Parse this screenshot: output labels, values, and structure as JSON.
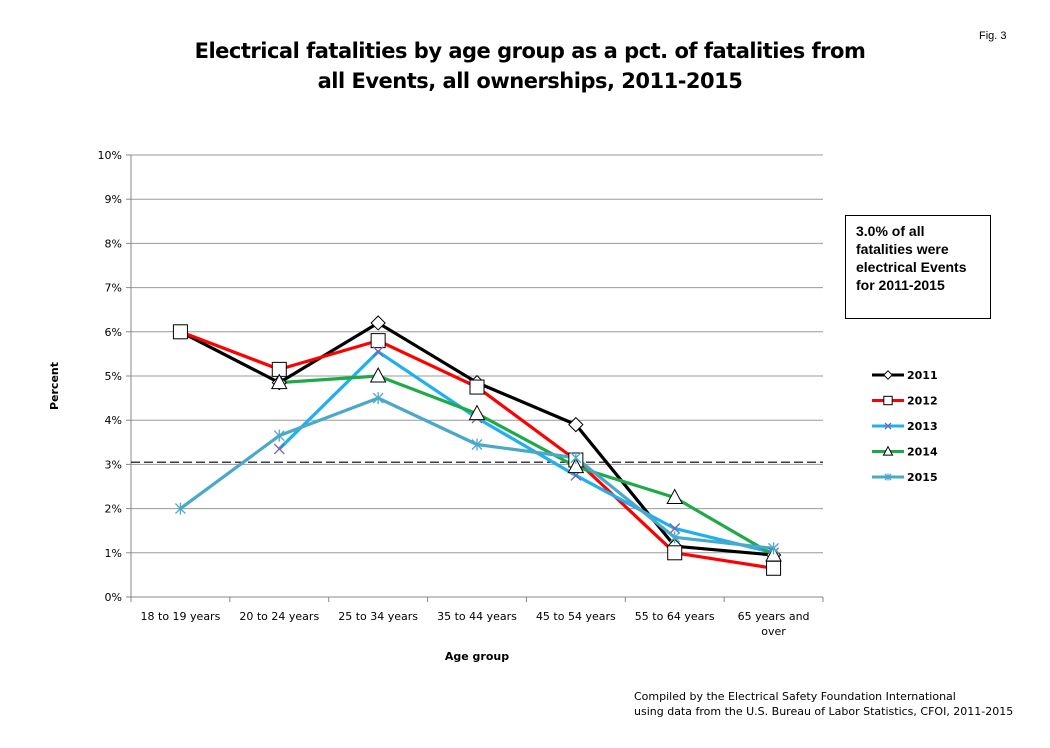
{
  "figure_label": "Fig. 3",
  "note": "3.0% of all fatalities were electrical Events for 2011-2015",
  "footer": [
    "Compiled by the Electrical Safety Foundation International",
    "using data from the U.S. Bureau of Labor Statistics, CFOI, 2011-2015"
  ],
  "chart_data": {
    "type": "line",
    "title": "Electrical fatalities by age group as a pct. of fatalities from all Events, all ownerships, 2011-2015",
    "title_lines": [
      "Electrical fatalities by age group as a pct. of fatalities from",
      "all Events, all ownerships, 2011-2015"
    ],
    "xlabel": "Age group",
    "ylabel": "Percent",
    "ylim": [
      0,
      10
    ],
    "yticks": [
      "0%",
      "1%",
      "2%",
      "3%",
      "4%",
      "5%",
      "6%",
      "7%",
      "8%",
      "9%",
      "10%"
    ],
    "grid": true,
    "legend_placement": "right",
    "categories": [
      "18 to 19 years",
      "20 to 24 years",
      "25 to 34 years",
      "35 to 44 years",
      "45 to 54 years",
      "55 to 64 years",
      "65 years and over"
    ],
    "reference_line": {
      "value": 3.05,
      "style": "dashed"
    },
    "series": [
      {
        "name": "2011",
        "color": "#000000",
        "marker": "diamond",
        "values": [
          6.0,
          4.85,
          6.2,
          4.85,
          3.9,
          1.15,
          0.95
        ]
      },
      {
        "name": "2012",
        "color": "#ff0000",
        "marker": "square",
        "values": [
          6.0,
          5.15,
          5.8,
          4.75,
          3.1,
          1.0,
          0.65
        ]
      },
      {
        "name": "2013",
        "color": "#1fb0f0",
        "marker": "x",
        "values": [
          null,
          3.35,
          5.55,
          4.05,
          2.75,
          1.55,
          1.0
        ]
      },
      {
        "name": "2014",
        "color": "#1faa4a",
        "marker": "triangle",
        "values": [
          null,
          4.85,
          5.0,
          4.15,
          2.95,
          2.25,
          0.95
        ]
      },
      {
        "name": "2015",
        "color": "#4aa8c8",
        "marker": "asterisk",
        "values": [
          2.0,
          3.65,
          4.5,
          3.45,
          3.15,
          1.35,
          1.1
        ]
      }
    ]
  }
}
